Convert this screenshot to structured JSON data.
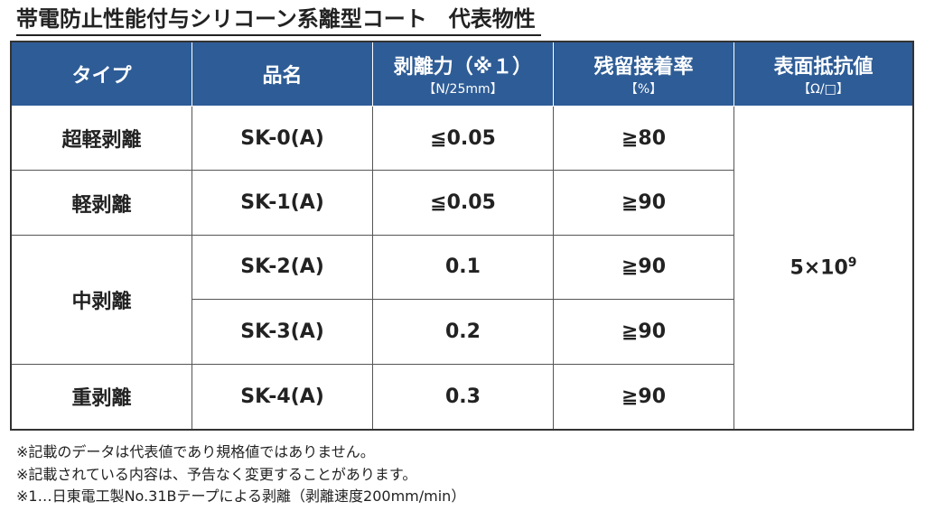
{
  "title": "帯電防止性能付与シリコーン系離型コート　代表物性",
  "header": [
    {
      "label": "タイプ"
    },
    {
      "label": "品名"
    },
    {
      "label": "剥離力（※１）",
      "unit": "【N/25mm】"
    },
    {
      "label": "残留接着率",
      "unit": "【%】"
    },
    {
      "label": "表面抵抗値",
      "unit": "【Ω/□】"
    }
  ],
  "types": [
    "超軽剥離",
    "軽剥離",
    "中剥離",
    "重剥離"
  ],
  "rows": [
    {
      "product": "SK-0(A)",
      "peel": "≦0.05",
      "residual": "≧80"
    },
    {
      "product": "SK-1(A)",
      "peel": "≦0.05",
      "residual": "≧90"
    },
    {
      "product": "SK-2(A)",
      "peel": "0.1",
      "residual": "≧90"
    },
    {
      "product": "SK-3(A)",
      "peel": "0.2",
      "residual": "≧90"
    },
    {
      "product": "SK-4(A)",
      "peel": "0.3",
      "residual": "≧90"
    }
  ],
  "resistivity": {
    "base": "5×10",
    "exponent": "9"
  },
  "notes": [
    "※記載のデータは代表値であり規格値ではありません。",
    "※記載されている内容は、予告なく変更することがあります。",
    "※1…日東電工製No.31Bテープによる剥離（剥離速度200mm/min）"
  ]
}
